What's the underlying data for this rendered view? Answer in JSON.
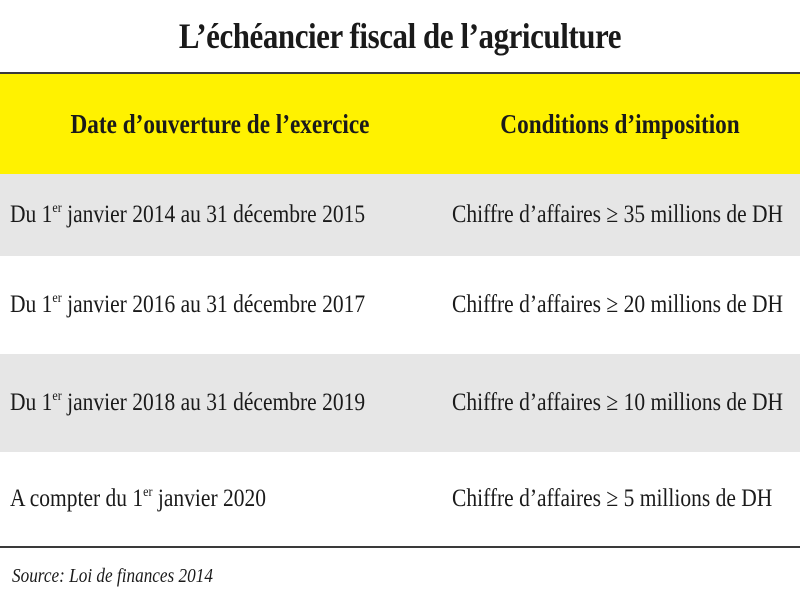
{
  "title": "L’échéancier fiscal de l’agriculture",
  "table": {
    "headers": {
      "col1": "Date d’ouverture de l’exercice",
      "col2": "Conditions d’imposition"
    },
    "rows": [
      {
        "date_prefix": "Du 1",
        "date_sup": "er",
        "date_suffix": " janvier 2014 au 31 décembre 2015",
        "condition": "Chiffre d’affaires ≥ 35 millions de DH"
      },
      {
        "date_prefix": "Du 1",
        "date_sup": "er",
        "date_suffix": " janvier 2016 au 31 décembre 2017",
        "condition": "Chiffre d’affaires ≥ 20 millions de DH"
      },
      {
        "date_prefix": "Du 1",
        "date_sup": "er",
        "date_suffix": " janvier 2018 au 31 décembre 2019",
        "condition": "Chiffre d’affaires ≥ 10 millions de DH"
      },
      {
        "date_prefix": "A compter du 1",
        "date_sup": "er",
        "date_suffix": " janvier 2020",
        "condition": "Chiffre d’affaires ≥ 5 millions de DH"
      }
    ]
  },
  "source": "Source: Loi de finances 2014",
  "colors": {
    "header_background": "#fff200",
    "striped_row": "#e6e6e6"
  }
}
